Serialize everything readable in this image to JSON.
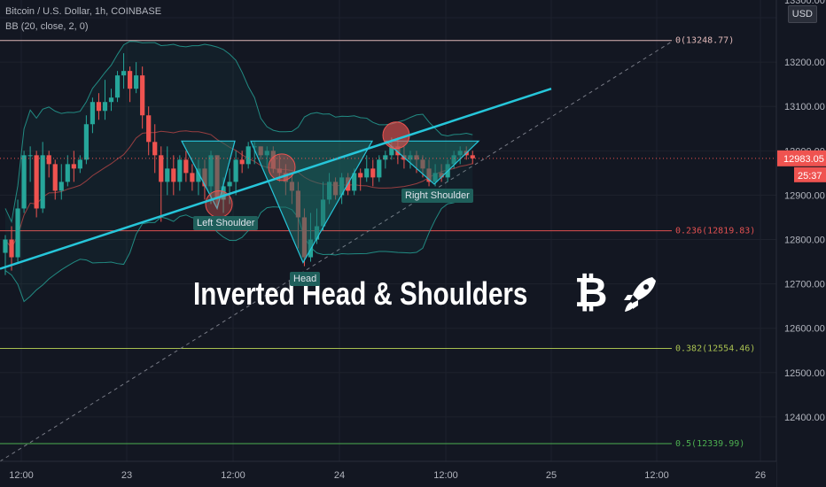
{
  "header": {
    "symbol_line": "Bitcoin / U.S. Dollar, 1h, COINBASE",
    "indicator_line": "BB (20, close, 2, 0)"
  },
  "price_scale": {
    "currency": "USD",
    "labels": [
      "13200.00",
      "13100.00",
      "12900.00",
      "12800.00",
      "12700.00",
      "12600.00",
      "12500.00",
      "12400.00"
    ],
    "top_cut_label": "13300.00",
    "cut_label": "13000.00",
    "current_price": "12983.05",
    "countdown": "25:37"
  },
  "time_axis": [
    "12:00",
    "23",
    "12:00",
    "24",
    "12:00",
    "25",
    "12:00",
    "26"
  ],
  "fib_levels": [
    {
      "label": "0(13248.77)",
      "price": 13248.77,
      "color": "#e0b8b8"
    },
    {
      "label": "0.236(12819.83)",
      "price": 12819.83,
      "color": "#e05050"
    },
    {
      "label": "0.382(12554.46)",
      "price": 12554.46,
      "color": "#a8c050"
    },
    {
      "label": "0.5(12339.99)",
      "price": 12339.99,
      "color": "#4caf50"
    }
  ],
  "annotations": {
    "left_shoulder": "Left Shoulder",
    "head": "Head",
    "right_shoulder": "Right Shoulder",
    "title": "Inverted Head & Shoulders",
    "bitcoin_symbol": "₿"
  },
  "colors": {
    "background": "#131722",
    "up": "#26a69a",
    "down": "#ef5350",
    "trendline": "#26c6da",
    "pattern_fill": "#1d6b66"
  },
  "chart_data": {
    "type": "candlestick",
    "title": "Bitcoin / U.S. Dollar, 1h, COINBASE",
    "ylim": [
      12300,
      13340
    ],
    "candles": [
      [
        12770,
        12800,
        12720,
        12810
      ],
      [
        12800,
        12760,
        12730,
        12830
      ],
      [
        12760,
        12870,
        12750,
        12890
      ],
      [
        12870,
        12990,
        12860,
        13000
      ],
      [
        12990,
        12990,
        12930,
        13010
      ],
      [
        12990,
        12870,
        12850,
        13000
      ],
      [
        12870,
        12990,
        12860,
        13020
      ],
      [
        12990,
        12970,
        12940,
        13000
      ],
      [
        12970,
        12910,
        12890,
        12980
      ],
      [
        12910,
        12930,
        12890,
        12970
      ],
      [
        12930,
        12970,
        12920,
        12990
      ],
      [
        12970,
        12960,
        12930,
        13000
      ],
      [
        12960,
        12980,
        12950,
        12990
      ],
      [
        12980,
        13060,
        12970,
        13080
      ],
      [
        13060,
        13110,
        13040,
        13120
      ],
      [
        13110,
        13090,
        13070,
        13130
      ],
      [
        13090,
        13110,
        13070,
        13160
      ],
      [
        13110,
        13120,
        13090,
        13140
      ],
      [
        13120,
        13170,
        13110,
        13180
      ],
      [
        13170,
        13180,
        13140,
        13220
      ],
      [
        13180,
        13140,
        13110,
        13190
      ],
      [
        13140,
        13170,
        13130,
        13200
      ],
      [
        13170,
        13080,
        13050,
        13190
      ],
      [
        13080,
        13020,
        12990,
        13100
      ],
      [
        13020,
        12990,
        12950,
        13060
      ],
      [
        12990,
        12930,
        12840,
        13010
      ],
      [
        12930,
        12960,
        12900,
        13010
      ],
      [
        12960,
        12930,
        12900,
        12990
      ],
      [
        12930,
        12980,
        12910,
        12990
      ],
      [
        12980,
        12950,
        12930,
        13000
      ],
      [
        12950,
        12930,
        12910,
        12970
      ],
      [
        12930,
        12960,
        12900,
        12980
      ],
      [
        12960,
        12920,
        12890,
        12980
      ],
      [
        12920,
        12990,
        12880,
        13000
      ],
      [
        12990,
        12890,
        12870,
        12990
      ],
      [
        12890,
        12920,
        12860,
        12940
      ],
      [
        12920,
        12930,
        12880,
        12960
      ],
      [
        12930,
        12980,
        12900,
        13000
      ],
      [
        12980,
        12970,
        12950,
        13000
      ],
      [
        12970,
        13010,
        12960,
        13020
      ],
      [
        13010,
        13010,
        12970,
        13020
      ],
      [
        13010,
        12990,
        12980,
        13010
      ],
      [
        12990,
        13000,
        12960,
        13010
      ],
      [
        13000,
        12960,
        12950,
        13010
      ],
      [
        12960,
        12950,
        12930,
        12990
      ],
      [
        12950,
        12930,
        12900,
        12970
      ],
      [
        12930,
        12910,
        12880,
        12950
      ],
      [
        12910,
        12850,
        12780,
        12930
      ],
      [
        12850,
        12760,
        12740,
        12870
      ],
      [
        12760,
        12800,
        12750,
        12860
      ],
      [
        12800,
        12830,
        12790,
        12870
      ],
      [
        12830,
        12890,
        12820,
        12930
      ],
      [
        12890,
        12930,
        12880,
        12950
      ],
      [
        12930,
        12900,
        12890,
        12940
      ],
      [
        12900,
        12940,
        12880,
        12950
      ],
      [
        12940,
        12910,
        12900,
        12950
      ],
      [
        12910,
        12950,
        12900,
        12960
      ],
      [
        12950,
        12940,
        12910,
        12960
      ],
      [
        12940,
        12960,
        12930,
        12990
      ],
      [
        12960,
        12940,
        12920,
        12980
      ],
      [
        12940,
        12980,
        12930,
        12990
      ],
      [
        12980,
        12990,
        12960,
        13000
      ],
      [
        12990,
        13010,
        12980,
        13030
      ],
      [
        13010,
        12990,
        12970,
        13030
      ],
      [
        12990,
        12980,
        12960,
        13010
      ],
      [
        12980,
        12990,
        12960,
        13000
      ],
      [
        12990,
        12980,
        12950,
        13000
      ],
      [
        12980,
        12960,
        12940,
        12990
      ],
      [
        12960,
        12930,
        12920,
        12980
      ],
      [
        12930,
        12950,
        12920,
        12970
      ],
      [
        12950,
        12940,
        12930,
        12970
      ],
      [
        12940,
        12970,
        12930,
        12980
      ],
      [
        12970,
        12990,
        12960,
        13000
      ],
      [
        12990,
        13000,
        12970,
        13010
      ],
      [
        13000,
        12990,
        12980,
        13010
      ],
      [
        12990,
        12983,
        12970,
        13000
      ]
    ]
  }
}
